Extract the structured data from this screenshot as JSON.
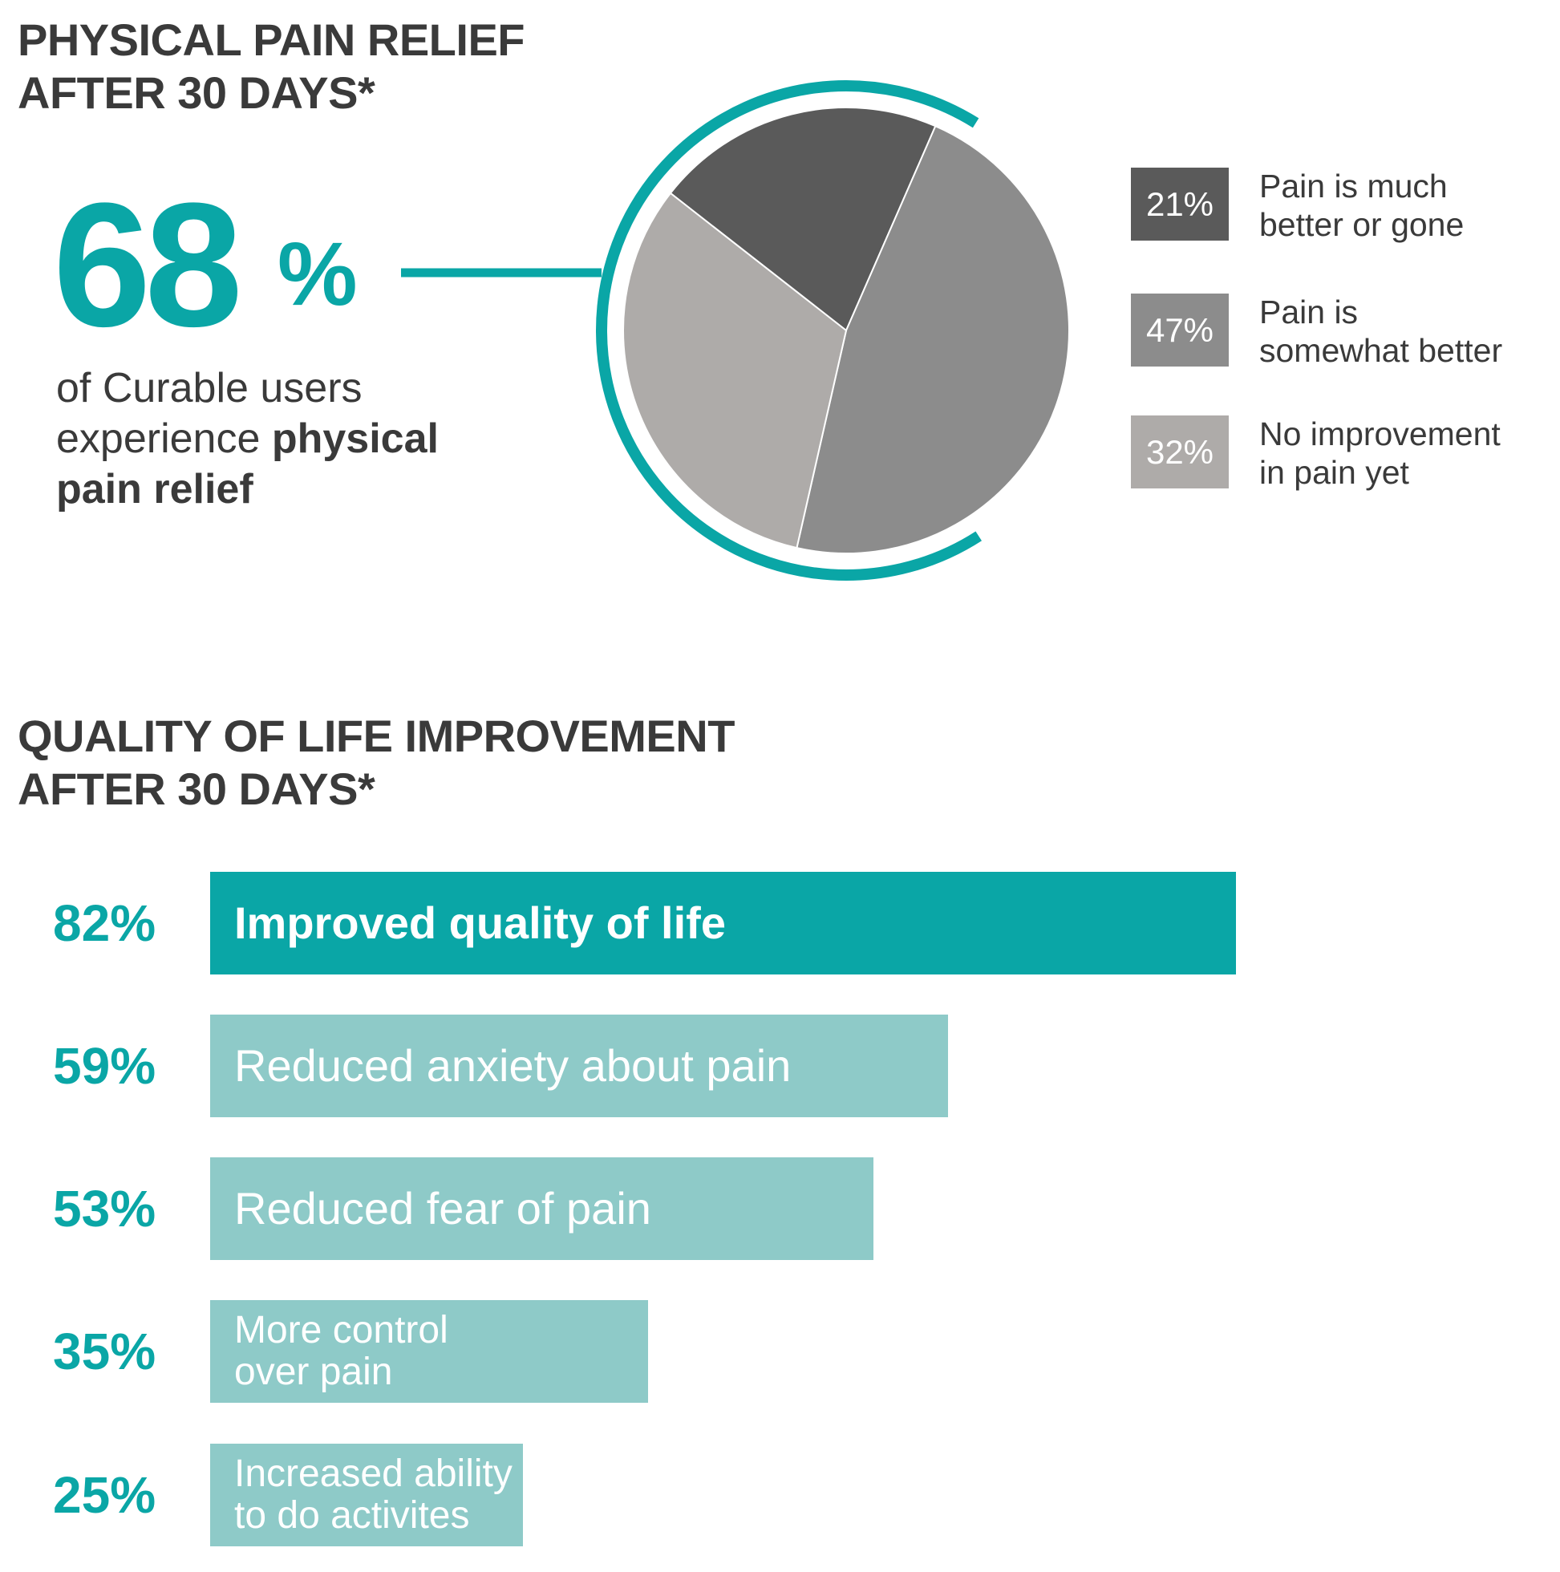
{
  "colors": {
    "teal": "#0aa6a6",
    "teal_light": "#8ecac8",
    "text_dark": "#3a3a3a",
    "pie_dark": "#5a5a5a",
    "pie_mid": "#8c8c8c",
    "pie_light": "#aeaba9"
  },
  "pie_section": {
    "heading_line1": "PHYSICAL PAIN RELIEF",
    "heading_line2": "AFTER 30 DAYS*",
    "big_number": "68",
    "big_percent_sign": "%",
    "callout_line1": "of Curable users",
    "callout_line2_plain": "experience ",
    "callout_line2_bold": "physical",
    "callout_line3_bold": "pain relief"
  },
  "bar_section": {
    "heading_line1": "QUALITY OF LIFE IMPROVEMENT",
    "heading_line2": "AFTER 30 DAYS*"
  },
  "chart_data": [
    {
      "type": "pie",
      "title": "PHYSICAL PAIN RELIEF AFTER 30 DAYS*",
      "highlight_arc_value": 68,
      "slices": [
        {
          "label": "Pain is much better or gone",
          "label_line1": "Pain is much",
          "label_line2": "better or gone",
          "value": 21,
          "display": "21%",
          "color": "#5a5a5a"
        },
        {
          "label": "Pain is somewhat better",
          "label_line1": "Pain is",
          "label_line2": "somewhat better",
          "value": 47,
          "display": "47%",
          "color": "#8c8c8c"
        },
        {
          "label": "No improvement in pain yet",
          "label_line1": "No improvement",
          "label_line2": "in pain yet",
          "value": 32,
          "display": "32%",
          "color": "#aeaba9"
        }
      ],
      "legend_position": "right"
    },
    {
      "type": "bar",
      "orientation": "horizontal",
      "title": "QUALITY OF LIFE IMPROVEMENT AFTER 30 DAYS*",
      "xlim": [
        0,
        100
      ],
      "bars": [
        {
          "label": "Improved quality of life",
          "lines": [
            "Improved quality of life"
          ],
          "value": 82,
          "display": "82%",
          "emphasis": true
        },
        {
          "label": "Reduced anxiety about pain",
          "lines": [
            "Reduced anxiety about pain"
          ],
          "value": 59,
          "display": "59%",
          "emphasis": false
        },
        {
          "label": "Reduced fear of pain",
          "lines": [
            "Reduced fear of pain"
          ],
          "value": 53,
          "display": "53%",
          "emphasis": false
        },
        {
          "label": "More control over pain",
          "lines": [
            "More control",
            "over pain"
          ],
          "value": 35,
          "display": "35%",
          "emphasis": false
        },
        {
          "label": "Increased ability to do activites",
          "lines": [
            "Increased ability",
            "to do activites"
          ],
          "value": 25,
          "display": "25%",
          "emphasis": false
        }
      ]
    }
  ]
}
